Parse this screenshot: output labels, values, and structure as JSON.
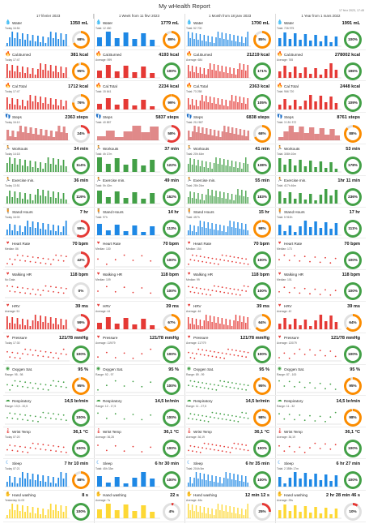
{
  "title": "My wHealth Report",
  "generated": "17 févr 2023, 17:49",
  "periods": [
    "17 février 2023",
    "1 Week from 11 févr 2023",
    "1 Month from 18 janv 2023",
    "1 Year from 1 mars 2022"
  ],
  "metrics": [
    {
      "name": "Water",
      "icon": "water-drop-icon",
      "color": "#1e88e5",
      "type": "bar",
      "cells": [
        {
          "value": "1350 mL",
          "sub": "Today 16:54",
          "pct": "68%",
          "rsub": "..."
        },
        {
          "value": "1779 mL",
          "sub": "Total: 12 450",
          "pct": "89%"
        },
        {
          "value": "1700 mL",
          "sub": "Total: 52 700",
          "pct": "85%"
        },
        {
          "value": "1991 mL",
          "sub": "Total: 726 975",
          "pct": "100%"
        }
      ]
    },
    {
      "name": "Cal.Burned",
      "icon": "flame-icon",
      "color": "#e53935",
      "type": "bar",
      "cells": [
        {
          "value": "381 kcal",
          "sub": "Today 17:47",
          "pct": "95%"
        },
        {
          "value": "4193 kcal",
          "sub": "Average: 599",
          "pct": "100%"
        },
        {
          "value": "21219 kcal",
          "sub": "Average: 684",
          "pct": "171%"
        },
        {
          "value": "278002 kcal",
          "sub": "Average: 765",
          "pct": "196%"
        }
      ]
    },
    {
      "name": "Cal.Total",
      "icon": "flame-icon",
      "color": "#e53935",
      "type": "bar",
      "cells": [
        {
          "value": "1712 kcal",
          "sub": "Today 17:47",
          "pct": "76%"
        },
        {
          "value": "2234 kcal",
          "sub": "Total: 15 641",
          "pct": "99%"
        },
        {
          "value": "2363 kcal",
          "sub": "Total: 73 258",
          "pct": "105%"
        },
        {
          "value": "2448 kcal",
          "sub": "Total: 966 720",
          "pct": "109%"
        }
      ]
    },
    {
      "name": "Steps",
      "icon": "footsteps-icon",
      "color": "#c62828",
      "type": "area",
      "cells": [
        {
          "value": "2363 steps",
          "sub": "Today 16:10",
          "pct": "24%"
        },
        {
          "value": "5837 steps",
          "sub": "Total: 40 857",
          "pct": "58%"
        },
        {
          "value": "6838 steps",
          "sub": "Total: 211 987",
          "pct": "68%"
        },
        {
          "value": "8761 steps",
          "sub": "Total: 3 151 372",
          "pct": "88%"
        }
      ]
    },
    {
      "name": "Workouts",
      "icon": "runner-icon",
      "color": "#43a047",
      "type": "bar",
      "cells": [
        {
          "value": "34 min",
          "sub": "Today 14:18",
          "pct": "114%"
        },
        {
          "value": "37 min",
          "sub": "Total: 4h 17m",
          "pct": "122%"
        },
        {
          "value": "41 min",
          "sub": "Total: 20h 44m",
          "pct": "138%"
        },
        {
          "value": "53 min",
          "sub": "Total: 308h 10m",
          "pct": "178%"
        }
      ]
    },
    {
      "name": "Exercise min.",
      "icon": "runner-icon",
      "color": "#43a047",
      "type": "bar",
      "cells": [
        {
          "value": "36 min",
          "sub": "Today 13:51",
          "pct": "119%"
        },
        {
          "value": "49 min",
          "sub": "Total: 5h 42m",
          "pct": "162%"
        },
        {
          "value": "55 min",
          "sub": "Total: 28h 24m",
          "pct": "183%"
        },
        {
          "value": "1hr 11 min",
          "sub": "Total: 417h 46m",
          "pct": "236%"
        }
      ]
    },
    {
      "name": "Stand Hours",
      "icon": "standing-icon",
      "color": "#1e88e5",
      "type": "bar",
      "cells": [
        {
          "value": "7 hr",
          "sub": "Today 16:00",
          "pct": "58%"
        },
        {
          "value": "14 hr",
          "sub": "Total: 97h",
          "pct": "113%"
        },
        {
          "value": "15 hr",
          "sub": "Total: 457h",
          "pct": "98%"
        },
        {
          "value": "17 hr",
          "sub": "Total: 5 910h",
          "pct": "111%"
        }
      ]
    },
    {
      "name": "Heart Rate",
      "icon": "heart-icon",
      "color": "#e53935",
      "type": "dot",
      "cells": [
        {
          "value": "70 bpm",
          "sub": "Median: 86",
          "pct": "42%"
        },
        {
          "value": "70 bpm",
          "sub": "Median: 130",
          "pct": "100%"
        },
        {
          "value": "70 bpm",
          "sub": "Median: 154",
          "pct": "100%"
        },
        {
          "value": "70 bpm",
          "sub": "Median: 173",
          "pct": "100%"
        }
      ]
    },
    {
      "name": "Walking HR",
      "icon": "walking-heart-icon",
      "color": "#e53935",
      "type": "dot",
      "cells": [
        {
          "value": "118 bpm",
          "sub": "No Data",
          "pct": "0%"
        },
        {
          "value": "118 bpm",
          "sub": "Median: 109",
          "pct": "100%"
        },
        {
          "value": "118 bpm",
          "sub": "Median: 99",
          "pct": "100%"
        },
        {
          "value": "118 bpm",
          "sub": "Median: 101",
          "pct": "100%"
        }
      ]
    },
    {
      "name": "HRV",
      "icon": "hrv-icon",
      "color": "#e53935",
      "type": "bar",
      "cells": [
        {
          "value": "39 ms",
          "sub": "Average: 51",
          "pct": "59%"
        },
        {
          "value": "39 ms",
          "sub": "Average: 44",
          "pct": "67%"
        },
        {
          "value": "39 ms",
          "sub": "Average: 46",
          "pct": "64%"
        },
        {
          "value": "39 ms",
          "sub": "Average: 42",
          "pct": "64%"
        }
      ]
    },
    {
      "name": "Pressure",
      "icon": "pressure-icon",
      "color": "#e53935",
      "type": "dot",
      "cells": [
        {
          "value": "121/78 mmHg",
          "sub": "Today 17:30",
          "pct": "100%"
        },
        {
          "value": "121/78 mmHg",
          "sub": "Average: 119/79",
          "pct": "100%"
        },
        {
          "value": "121/78 mmHg",
          "sub": "Average: 117/79",
          "pct": "100%"
        },
        {
          "value": "121/78 mmHg",
          "sub": "Average: 120/79",
          "pct": "100%"
        }
      ]
    },
    {
      "name": "Oxygen Sat.",
      "icon": "oxygen-icon",
      "color": "#43a047",
      "type": "dot",
      "cells": [
        {
          "value": "95 %",
          "sub": "Range: 95 - 98",
          "pct": "95%"
        },
        {
          "value": "95 %",
          "sub": "Range: 92 - 97",
          "pct": "100%"
        },
        {
          "value": "95 %",
          "sub": "Range: 89 - 99",
          "pct": "95%"
        },
        {
          "value": "95 %",
          "sub": "Range: 87 - 100",
          "pct": "95%"
        }
      ]
    },
    {
      "name": "Respiratory",
      "icon": "lungs-icon",
      "color": "#43a047",
      "type": "dot",
      "cells": [
        {
          "value": "14,5 br/min",
          "sub": "Range: 13,5 - 20,5",
          "pct": "100%"
        },
        {
          "value": "14,5 br/min",
          "sub": "Range: 12 - 17,5",
          "pct": "100%"
        },
        {
          "value": "14,5 br/min",
          "sub": "Range: 11 - 27,5",
          "pct": "98%"
        },
        {
          "value": "14,5 br/min",
          "sub": "Range: 11 - 32",
          "pct": "98%"
        }
      ]
    },
    {
      "name": "Wrist Temp",
      "icon": "thermometer-icon",
      "color": "#e53935",
      "type": "dot",
      "cells": [
        {
          "value": "36,1 °C",
          "sub": "Today 07:20",
          "pct": "100%"
        },
        {
          "value": "36,1 °C",
          "sub": "Average: 36,28",
          "pct": "100%"
        },
        {
          "value": "36,1 °C",
          "sub": "Average: 36,19",
          "pct": "100%"
        },
        {
          "value": "36,1 °C",
          "sub": "Average: 36,19",
          "pct": "100%"
        }
      ]
    },
    {
      "name": "Sleep",
      "icon": "sleep-icon",
      "color": "#1e88e5",
      "type": "bar",
      "cells": [
        {
          "value": "7 hr 10 min",
          "sub": "Today 07:21",
          "pct": "88%"
        },
        {
          "value": "6 hr 30 min",
          "sub": "Total: 45h 33m",
          "pct": "100%"
        },
        {
          "value": "6 hr 35 min",
          "sub": "Total: 204h 5m",
          "pct": "100%"
        },
        {
          "value": "6 hr 27 min",
          "sub": "Total: 2 355h 17m",
          "pct": "100%"
        }
      ]
    },
    {
      "name": "Hand washing",
      "icon": "hands-icon",
      "color": "#fdd835",
      "type": "bar",
      "cells": [
        {
          "value": "8 s",
          "sub": "Yesterday 11:03",
          "pct": "100%"
        },
        {
          "value": "22 s",
          "sub": "Average: 7s",
          "pct": "4%"
        },
        {
          "value": "12 min 12 s",
          "sub": "Average: 46s",
          "pct": "25%"
        },
        {
          "value": "2 hr 28 min 46 s",
          "sub": "Average: 25s",
          "pct": "10%"
        }
      ]
    }
  ]
}
